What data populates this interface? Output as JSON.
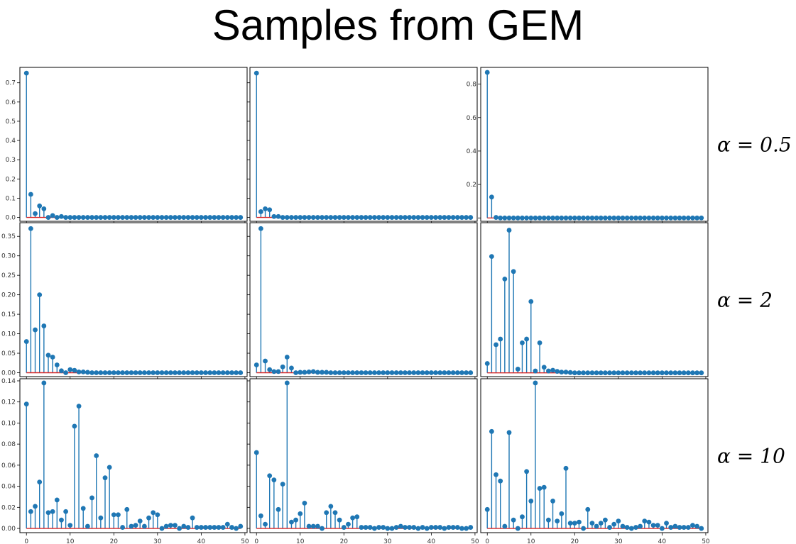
{
  "title": "Samples from GEM",
  "colors": {
    "stem": "#1f77b4",
    "marker": "#1f77b4",
    "baseline": "#d62728",
    "frame": "#000000"
  },
  "chart_data": {
    "type": "stem",
    "rows": [
      {
        "label": "α = 0.5",
        "panels": [
          {
            "ylim": [
              -0.02,
              0.78
            ],
            "yticks": [
              0.0,
              0.1,
              0.2,
              0.3,
              0.4,
              0.5,
              0.6,
              0.7
            ],
            "ytick_labels": [
              "0.0",
              "0.1",
              "0.2",
              "0.3",
              "0.4",
              "0.5",
              "0.6",
              "0.7"
            ],
            "values": [
              0.75,
              0.12,
              0.02,
              0.06,
              0.045,
              0.0,
              0.01,
              0.0,
              0.005,
              0,
              0,
              0,
              0,
              0,
              0,
              0,
              0,
              0,
              0,
              0,
              0,
              0,
              0,
              0,
              0,
              0,
              0,
              0,
              0,
              0,
              0,
              0,
              0,
              0,
              0,
              0,
              0,
              0,
              0,
              0,
              0,
              0,
              0,
              0,
              0,
              0,
              0,
              0,
              0,
              0
            ]
          },
          {
            "ylim": [
              -0.02,
              0.78
            ],
            "yticks": [
              0.0,
              0.1,
              0.2,
              0.3,
              0.4,
              0.5,
              0.6,
              0.7
            ],
            "ytick_labels": [],
            "values": [
              0.75,
              0.03,
              0.045,
              0.04,
              0.005,
              0.005,
              0,
              0,
              0,
              0,
              0,
              0,
              0,
              0,
              0,
              0,
              0,
              0,
              0,
              0,
              0,
              0,
              0,
              0,
              0,
              0,
              0,
              0,
              0,
              0,
              0,
              0,
              0,
              0,
              0,
              0,
              0,
              0,
              0,
              0,
              0,
              0,
              0,
              0,
              0,
              0,
              0,
              0,
              0,
              0
            ]
          },
          {
            "ylim": [
              -0.02,
              0.9
            ],
            "yticks": [
              0.0,
              0.2,
              0.4,
              0.6,
              0.8
            ],
            "ytick_labels": [
              "",
              "0.2",
              "0.4",
              "0.6",
              "0.8"
            ],
            "values": [
              0.87,
              0.125,
              0.003,
              0,
              0,
              0,
              0,
              0,
              0,
              0,
              0,
              0,
              0,
              0,
              0,
              0,
              0,
              0,
              0,
              0,
              0,
              0,
              0,
              0,
              0,
              0,
              0,
              0,
              0,
              0,
              0,
              0,
              0,
              0,
              0,
              0,
              0,
              0,
              0,
              0,
              0,
              0,
              0,
              0,
              0,
              0,
              0,
              0,
              0,
              0
            ]
          }
        ]
      },
      {
        "label": "α = 2",
        "panels": [
          {
            "ylim": [
              -0.01,
              0.385
            ],
            "yticks": [
              0.0,
              0.05,
              0.1,
              0.15,
              0.2,
              0.25,
              0.3,
              0.35
            ],
            "ytick_labels": [
              "0.00",
              "0.05",
              "0.10",
              "0.15",
              "0.20",
              "0.25",
              "0.30",
              "0.35"
            ],
            "values": [
              0.08,
              0.37,
              0.11,
              0.2,
              0.12,
              0.045,
              0.04,
              0.02,
              0.005,
              0.0,
              0.008,
              0.006,
              0.002,
              0.002,
              0.001,
              0,
              0,
              0,
              0,
              0,
              0,
              0,
              0,
              0,
              0,
              0,
              0,
              0,
              0,
              0,
              0,
              0,
              0,
              0,
              0,
              0,
              0,
              0,
              0,
              0,
              0,
              0,
              0,
              0,
              0,
              0,
              0,
              0,
              0,
              0
            ]
          },
          {
            "ylim": [
              -0.01,
              0.385
            ],
            "yticks": [
              0.0,
              0.05,
              0.1,
              0.15,
              0.2,
              0.25,
              0.3,
              0.35
            ],
            "ytick_labels": [],
            "values": [
              0.02,
              0.37,
              0.03,
              0.008,
              0.003,
              0.003,
              0.015,
              0.04,
              0.012,
              0.0,
              0.001,
              0.001,
              0.002,
              0.003,
              0.001,
              0.001,
              0.001,
              0,
              0,
              0,
              0,
              0,
              0,
              0,
              0,
              0,
              0,
              0,
              0,
              0,
              0,
              0,
              0,
              0,
              0,
              0,
              0,
              0,
              0,
              0,
              0,
              0,
              0,
              0,
              0,
              0,
              0,
              0,
              0,
              0
            ]
          },
          {
            "ylim": [
              -0.01,
              0.4
            ],
            "yticks": [],
            "ytick_labels": [],
            "values": [
              0.025,
              0.31,
              0.075,
              0.09,
              0.25,
              0.38,
              0.27,
              0.01,
              0.08,
              0.09,
              0.19,
              0.005,
              0.08,
              0.015,
              0.005,
              0.007,
              0.004,
              0.002,
              0.002,
              0.001,
              0,
              0,
              0,
              0,
              0,
              0,
              0,
              0,
              0,
              0,
              0,
              0,
              0,
              0,
              0,
              0,
              0,
              0,
              0,
              0,
              0,
              0,
              0,
              0,
              0,
              0,
              0,
              0,
              0,
              0
            ]
          }
        ]
      },
      {
        "label": "α = 10",
        "panels": [
          {
            "ylim": [
              -0.004,
              0.142
            ],
            "yticks": [
              0.0,
              0.02,
              0.04,
              0.06,
              0.08,
              0.1,
              0.12,
              0.14
            ],
            "ytick_labels": [
              "0.00",
              "0.02",
              "0.04",
              "0.06",
              "0.08",
              "0.10",
              "0.12",
              "0.14"
            ],
            "values": [
              0.118,
              0.016,
              0.021,
              0.044,
              0.138,
              0.015,
              0.016,
              0.027,
              0.008,
              0.016,
              0.003,
              0.097,
              0.116,
              0.019,
              0.002,
              0.029,
              0.069,
              0.01,
              0.048,
              0.058,
              0.013,
              0.013,
              0.001,
              0.018,
              0.002,
              0.003,
              0.007,
              0.002,
              0.01,
              0.015,
              0.013,
              0.0,
              0.002,
              0.003,
              0.003,
              0.0,
              0.002,
              0.001,
              0.01,
              0.001,
              0.001,
              0.001,
              0.001,
              0.001,
              0.001,
              0.001,
              0.004,
              0.001,
              0.0,
              0.002
            ]
          },
          {
            "ylim": [
              -0.004,
              0.142
            ],
            "yticks": [
              0.0,
              0.02,
              0.04,
              0.06,
              0.08,
              0.1,
              0.12,
              0.14
            ],
            "ytick_labels": [],
            "values": [
              0.072,
              0.012,
              0.004,
              0.05,
              0.046,
              0.018,
              0.042,
              0.138,
              0.006,
              0.008,
              0.014,
              0.024,
              0.002,
              0.002,
              0.002,
              0.0,
              0.015,
              0.021,
              0.015,
              0.008,
              0.001,
              0.004,
              0.01,
              0.011,
              0.001,
              0.001,
              0.001,
              0.0,
              0.001,
              0.001,
              0.0,
              0.0,
              0.001,
              0.002,
              0.001,
              0.001,
              0.001,
              0.0,
              0.001,
              0.0,
              0.001,
              0.001,
              0.001,
              0.0,
              0.001,
              0.001,
              0.001,
              0.0,
              0.0,
              0.001
            ]
          },
          {
            "ylim": [
              -0.004,
              0.142
            ],
            "yticks": [],
            "ytick_labels": [],
            "values": [
              0.018,
              0.092,
              0.051,
              0.045,
              0.002,
              0.091,
              0.008,
              0.0,
              0.011,
              0.054,
              0.026,
              0.138,
              0.038,
              0.039,
              0.008,
              0.026,
              0.007,
              0.014,
              0.057,
              0.005,
              0.005,
              0.006,
              0.0,
              0.018,
              0.005,
              0.002,
              0.005,
              0.008,
              0.001,
              0.004,
              0.007,
              0.002,
              0.001,
              0.0,
              0.001,
              0.002,
              0.007,
              0.006,
              0.003,
              0.003,
              0.0,
              0.005,
              0.001,
              0.002,
              0.001,
              0.001,
              0.001,
              0.003,
              0.002,
              0.0
            ]
          }
        ]
      }
    ],
    "xlim": [
      -1.5,
      50.5
    ],
    "xticks": [
      0,
      10,
      20,
      30,
      40,
      50
    ],
    "xtick_labels": [
      "0",
      "10",
      "20",
      "30",
      "40",
      "50"
    ]
  }
}
